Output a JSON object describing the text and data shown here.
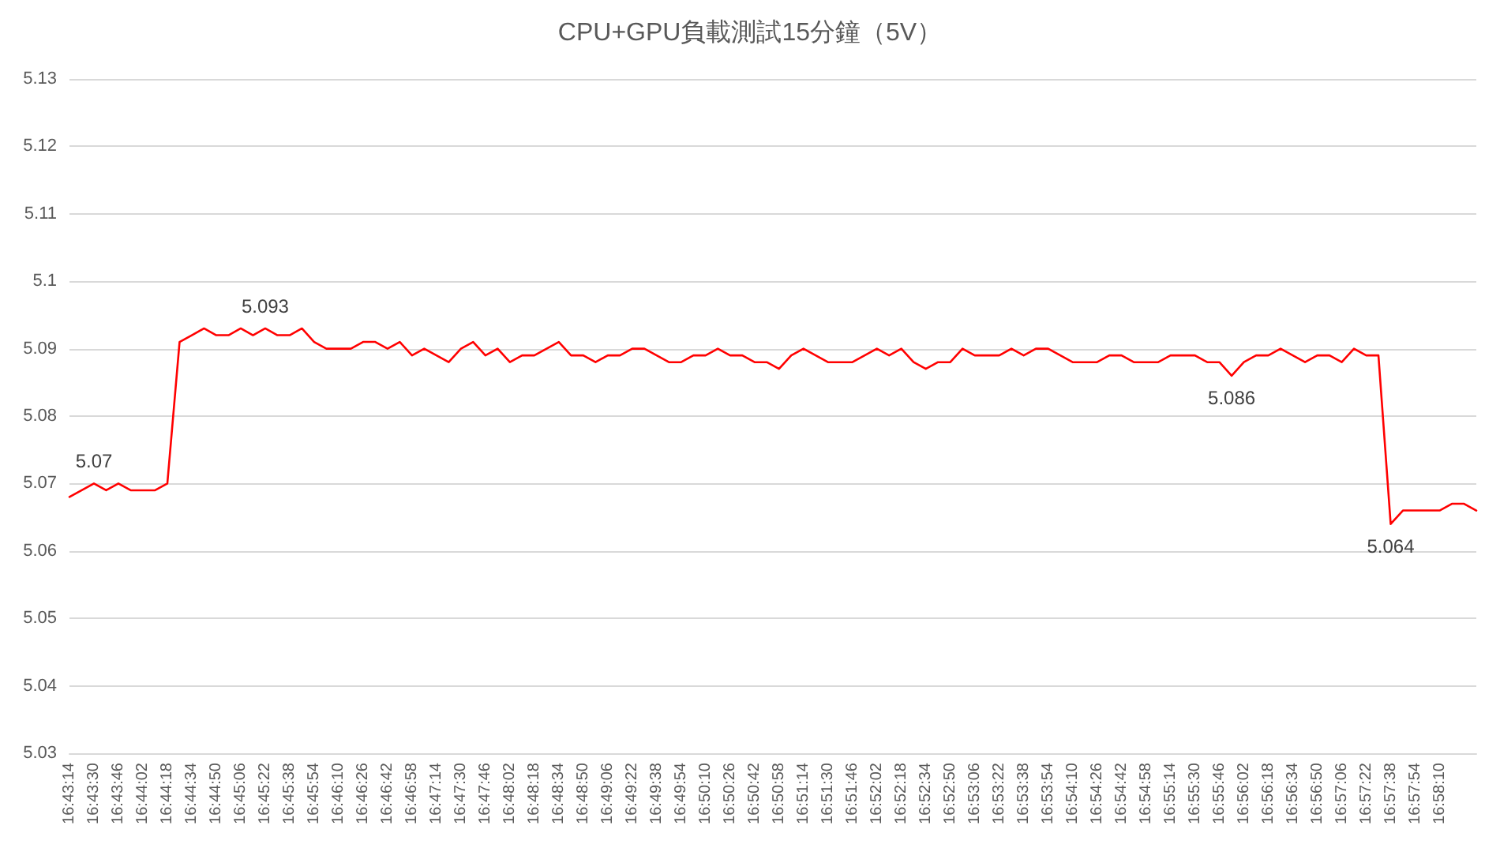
{
  "chart_data": {
    "type": "line",
    "title": "CPU+GPU負載測試15分鐘（5V）",
    "categories": [
      "16:43:14",
      null,
      "16:43:30",
      null,
      "16:43:46",
      null,
      "16:44:02",
      null,
      "16:44:18",
      null,
      "16:44:34",
      null,
      "16:44:50",
      null,
      "16:45:06",
      null,
      "16:45:22",
      null,
      "16:45:38",
      null,
      "16:45:54",
      null,
      "16:46:10",
      null,
      "16:46:26",
      null,
      "16:46:42",
      null,
      "16:46:58",
      null,
      "16:47:14",
      null,
      "16:47:30",
      null,
      "16:47:46",
      null,
      "16:48:02",
      null,
      "16:48:18",
      null,
      "16:48:34",
      null,
      "16:48:50",
      null,
      "16:49:06",
      null,
      "16:49:22",
      null,
      "16:49:38",
      null,
      "16:49:54",
      null,
      "16:50:10",
      null,
      "16:50:26",
      null,
      "16:50:42",
      null,
      "16:50:58",
      null,
      "16:51:14",
      null,
      "16:51:30",
      null,
      "16:51:46",
      null,
      "16:52:02",
      null,
      "16:52:18",
      null,
      "16:52:34",
      null,
      "16:52:50",
      null,
      "16:53:06",
      null,
      "16:53:22",
      null,
      "16:53:38",
      null,
      "16:53:54",
      null,
      "16:54:10",
      null,
      "16:54:26",
      null,
      "16:54:42",
      null,
      "16:54:58",
      null,
      "16:55:14",
      null,
      "16:55:30",
      null,
      "16:55:46",
      null,
      "16:56:02",
      null,
      "16:56:18",
      null,
      "16:56:34",
      null,
      "16:56:50",
      null,
      "16:57:06",
      null,
      "16:57:22",
      null,
      "16:57:38",
      null,
      "16:57:54",
      null,
      "16:58:10",
      null,
      null,
      null
    ],
    "series": [
      {
        "color": "#ff0000",
        "values": [
          5.068,
          5.069,
          5.07,
          5.069,
          5.07,
          5.069,
          5.069,
          5.069,
          5.07,
          5.091,
          5.092,
          5.093,
          5.092,
          5.092,
          5.093,
          5.092,
          5.093,
          5.092,
          5.092,
          5.093,
          5.091,
          5.09,
          5.09,
          5.09,
          5.091,
          5.091,
          5.09,
          5.091,
          5.089,
          5.09,
          5.089,
          5.088,
          5.09,
          5.091,
          5.089,
          5.09,
          5.088,
          5.089,
          5.089,
          5.09,
          5.091,
          5.089,
          5.089,
          5.088,
          5.089,
          5.089,
          5.09,
          5.09,
          5.089,
          5.088,
          5.088,
          5.089,
          5.089,
          5.09,
          5.089,
          5.089,
          5.088,
          5.088,
          5.087,
          5.089,
          5.09,
          5.089,
          5.088,
          5.088,
          5.088,
          5.089,
          5.09,
          5.089,
          5.09,
          5.088,
          5.087,
          5.088,
          5.088,
          5.09,
          5.089,
          5.089,
          5.089,
          5.09,
          5.089,
          5.09,
          5.09,
          5.089,
          5.088,
          5.088,
          5.088,
          5.089,
          5.089,
          5.088,
          5.088,
          5.088,
          5.089,
          5.089,
          5.089,
          5.088,
          5.088,
          5.086,
          5.088,
          5.089,
          5.089,
          5.09,
          5.089,
          5.088,
          5.089,
          5.089,
          5.088,
          5.09,
          5.089,
          5.089,
          5.064,
          5.066,
          5.066,
          5.066,
          5.066,
          5.067,
          5.067,
          5.066
        ],
        "value_labels": [
          null,
          null,
          "5.07",
          null,
          null,
          null,
          null,
          null,
          null,
          null,
          null,
          null,
          null,
          null,
          null,
          null,
          "5.093",
          null,
          null,
          null,
          null,
          null,
          null,
          null,
          null,
          null,
          null,
          null,
          null,
          null,
          null,
          null,
          null,
          null,
          null,
          null,
          null,
          null,
          null,
          null,
          null,
          null,
          null,
          null,
          null,
          null,
          null,
          null,
          null,
          null,
          null,
          null,
          null,
          null,
          null,
          null,
          null,
          null,
          null,
          null,
          null,
          null,
          null,
          null,
          null,
          null,
          null,
          null,
          null,
          null,
          null,
          null,
          null,
          null,
          null,
          null,
          null,
          null,
          null,
          null,
          null,
          null,
          null,
          null,
          null,
          null,
          null,
          null,
          null,
          null,
          null,
          null,
          null,
          null,
          null,
          "5.086",
          null,
          null,
          null,
          null,
          null,
          null,
          null,
          null,
          null,
          null,
          null,
          null,
          "5.064",
          null,
          null,
          null,
          null,
          null,
          null,
          null
        ]
      }
    ],
    "ylim": [
      5.03,
      5.13
    ],
    "yticks": [
      5.03,
      5.04,
      5.05,
      5.06,
      5.07,
      5.08,
      5.09,
      5.1,
      5.11,
      5.12,
      5.13
    ],
    "grid": "y",
    "marker": "none",
    "line_style": "solid"
  }
}
